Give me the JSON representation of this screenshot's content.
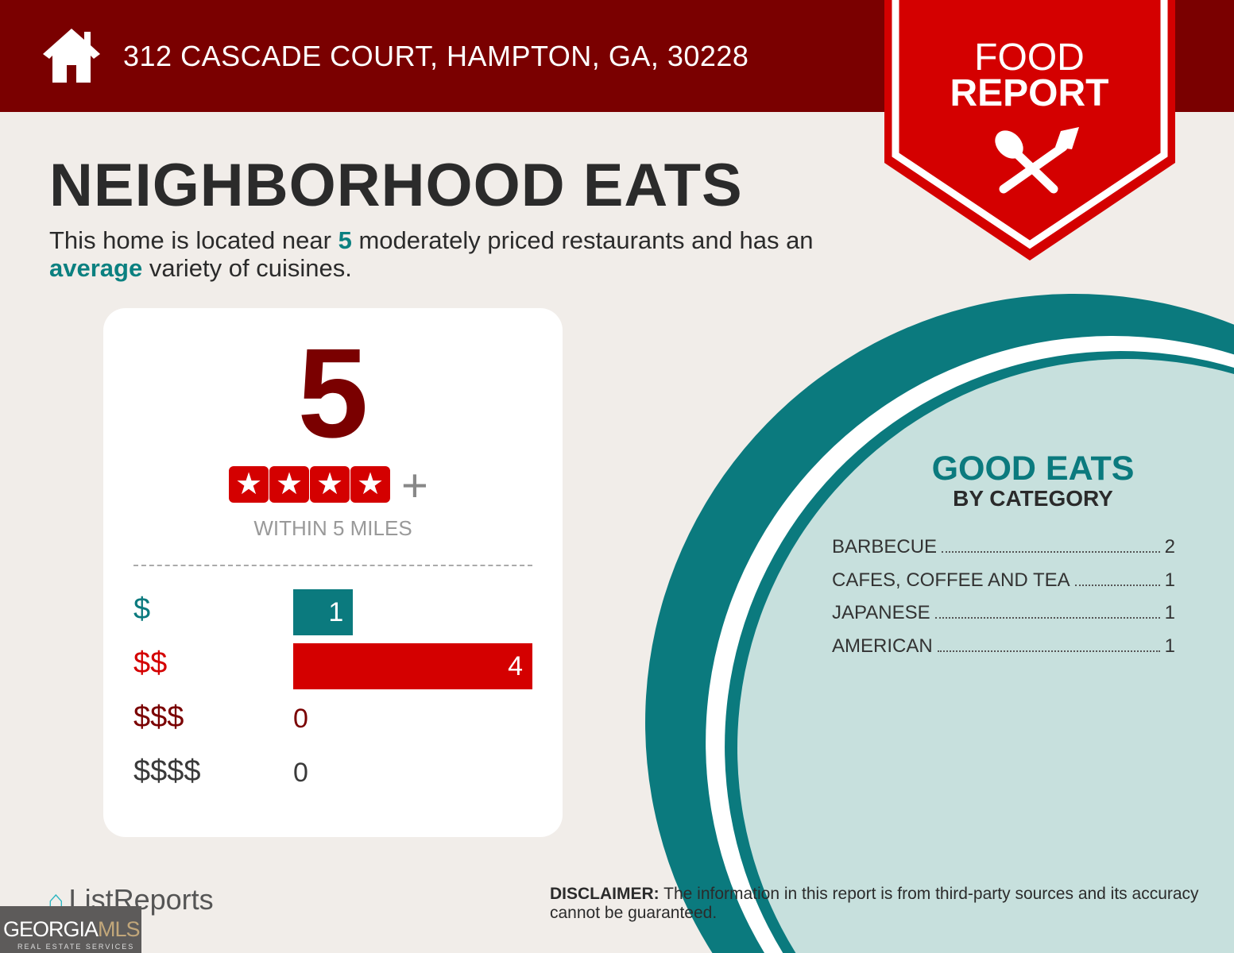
{
  "header": {
    "address": "312 CASCADE COURT, HAMPTON, GA, 30228",
    "icon": "home-icon"
  },
  "banner": {
    "line1": "FOOD",
    "line2": "REPORT",
    "icon": "spoon-fork-icon",
    "color": "#d40000"
  },
  "title": "NEIGHBORHOOD EATS",
  "subtitle": {
    "p1": "This home is located near ",
    "count": "5",
    "p2": " moderately priced restaurants and has an ",
    "variety": "average",
    "p3": " variety of cuisines."
  },
  "card": {
    "count": "5",
    "stars": 4,
    "star_glyph": "★",
    "plus": "+",
    "within": "WITHIN 5 MILES",
    "prices": [
      {
        "label": "$",
        "value": 1,
        "color": "#0b7a7e"
      },
      {
        "label": "$$",
        "value": 4,
        "color": "#d40000"
      },
      {
        "label": "$$$",
        "value": 0,
        "color": "#7a0000"
      },
      {
        "label": "$$$$",
        "value": 0,
        "color": "#3a3a3a"
      }
    ]
  },
  "good_eats": {
    "title": "GOOD EATS",
    "subtitle": "BY CATEGORY",
    "categories": [
      {
        "name": "BARBECUE",
        "count": "2"
      },
      {
        "name": "CAFES, COFFEE AND TEA",
        "count": "1"
      },
      {
        "name": "JAPANESE",
        "count": "1"
      },
      {
        "name": "AMERICAN",
        "count": "1"
      }
    ]
  },
  "footer": {
    "logo": "ListReports",
    "mls_main": "GEORGIA",
    "mls_accent": "MLS",
    "mls_sub": "REAL ESTATE SERVICES",
    "disclaimer_label": "DISCLAIMER:",
    "disclaimer": " The information in this report is from third-party sources and its accuracy cannot be guaranteed."
  }
}
